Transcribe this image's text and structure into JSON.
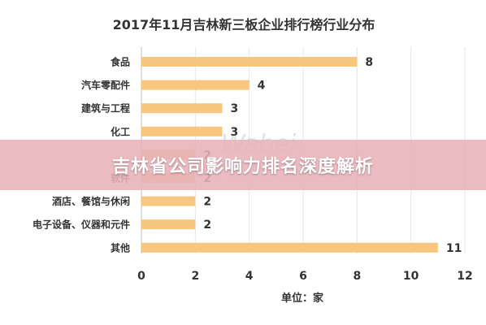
{
  "chart_data": {
    "type": "bar",
    "orientation": "horizontal",
    "title": "2017年11月吉林新三板企业排行榜行业分布",
    "xlabel": "单位：家",
    "categories": [
      "食品",
      "汽车零配件",
      "建筑与工程",
      "化工",
      "",
      "软件",
      "酒店、餐馆与休闲",
      "电子设备、仪器和元件",
      "其他"
    ],
    "values": [
      8,
      4,
      3,
      3,
      2,
      2,
      2,
      2,
      11
    ],
    "xlim": [
      0,
      12
    ],
    "xticks": [
      0,
      2,
      4,
      6,
      8,
      10,
      12
    ],
    "bar_color": "#f7c77f",
    "grid": "vertical",
    "data_labels": true
  },
  "overlay_banner": {
    "text": "吉林省公司影响力排名深度解析",
    "background": "#e7b2b8"
  },
  "watermark": {
    "text": "Wabei"
  }
}
